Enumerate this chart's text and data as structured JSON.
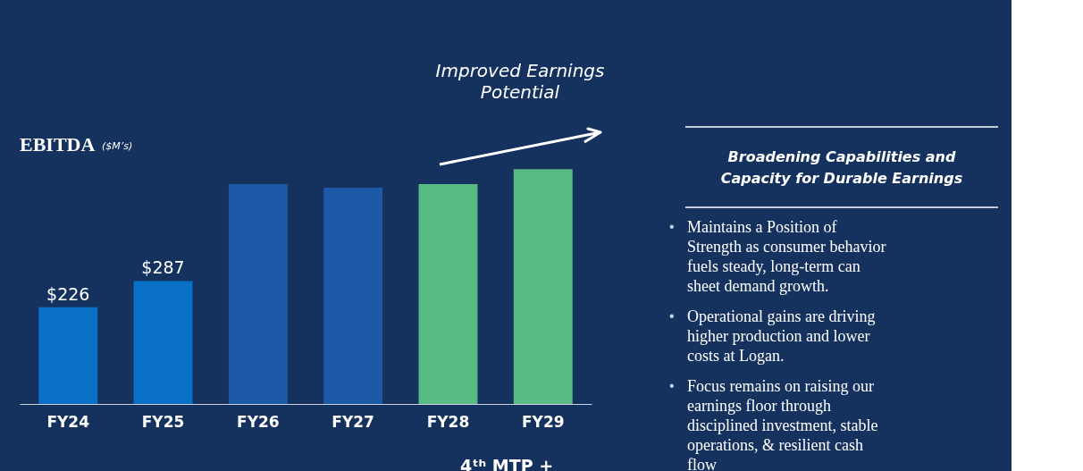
{
  "chart_data": [
    {
      "type": "bar",
      "title": "EBITDA",
      "subtitle": "($M’s)",
      "categories": [
        "FY24",
        "FY25",
        "FY26",
        "FY27",
        "FY28",
        "FY29"
      ],
      "values": [
        226,
        287,
        513,
        505,
        513,
        548
      ],
      "value_labels": [
        "$226",
        "$287",
        null,
        null,
        null,
        null
      ],
      "colors": [
        "#0870c6",
        "#0870c6",
        "#1c5aa8",
        "#1c5aa8",
        "#58bb84",
        "#58bb84"
      ],
      "annotations": [
        "Improved Earnings Potential",
        "4ᵗʰ MTP +"
      ]
    },
    {
      "type": "other",
      "title": "Broadening Capabilities and Capacity for Durable Earnings",
      "annotations": [
        "• Maintains a Position of Strength as consumer behavior fuels steady, long-term can sheet demand growth.",
        "• Operational gains are driving higher production and lower costs at Logan.",
        "• Focus remains on raising our earnings floor through disciplined investment, stable operations, &  resilient cash flow"
      ]
    }
  ]
}
